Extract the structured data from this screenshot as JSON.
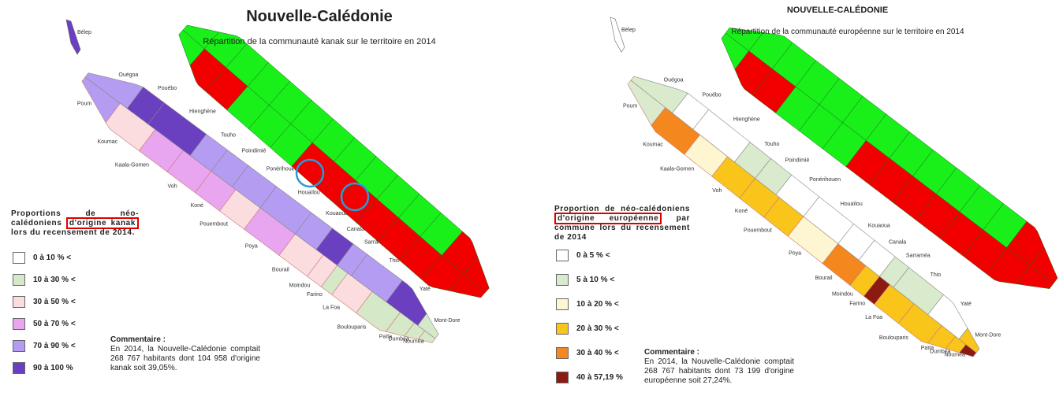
{
  "panels": [
    {
      "title": "Nouvelle-Calédonie",
      "subtitle": "Répartition de la communauté kanak sur le territoire en 2014",
      "legend": {
        "title_start": "Proportions de néo-calédoniens",
        "highlight": "d'origine kanak",
        "title_end": "lors du recensement de 2014.",
        "items": [
          {
            "label": "0 à 10 % <",
            "color": "#ffffff"
          },
          {
            "label": "10 à 30 % <",
            "color": "#d5e8c8"
          },
          {
            "label": "30 à 50 % <",
            "color": "#fbdde0"
          },
          {
            "label": "50 à 70 % <",
            "color": "#e8a6f0"
          },
          {
            "label": "70 à 90 % <",
            "color": "#b49cf2"
          },
          {
            "label": "90 à 100 %",
            "color": "#6a3fc0"
          }
        ]
      },
      "commentary": {
        "heading": "Commentaire :",
        "text": "En 2014, la Nouvelle-Calédonie comptait 268 767 habitants dont 104 958 d'origine kanak soit 39,05%."
      },
      "communes": [
        {
          "name": "Bélep",
          "color": "#6a3fc0"
        },
        {
          "name": "Poum",
          "color": "#b49cf2"
        },
        {
          "name": "Koumac",
          "color": "#fbdde0"
        },
        {
          "name": "Kaala-Gomen",
          "color": "#e8a6f0"
        },
        {
          "name": "Voh",
          "color": "#e8a6f0"
        },
        {
          "name": "Koné",
          "color": "#e8a6f0"
        },
        {
          "name": "Pouembout",
          "color": "#fbdde0"
        },
        {
          "name": "Poya",
          "color": "#e8a6f0"
        },
        {
          "name": "Bourail",
          "color": "#fbdde0"
        },
        {
          "name": "Moindou",
          "color": "#fbdde0"
        },
        {
          "name": "Farino",
          "color": "#d5e8c8"
        },
        {
          "name": "La Foa",
          "color": "#fbdde0"
        },
        {
          "name": "Boulouparis",
          "color": "#d5e8c8"
        },
        {
          "name": "Païta",
          "color": "#d5e8c8"
        },
        {
          "name": "Dumbéa",
          "color": "#d5e8c8"
        },
        {
          "name": "Nouméa",
          "color": "#d5e8c8"
        },
        {
          "name": "Ouégoa",
          "color": "#b49cf2"
        },
        {
          "name": "Pouébo",
          "color": "#6a3fc0"
        },
        {
          "name": "Hienghène",
          "color": "#6a3fc0"
        },
        {
          "name": "Touho",
          "color": "#b49cf2"
        },
        {
          "name": "Poindimié",
          "color": "#b49cf2"
        },
        {
          "name": "Ponérihouen",
          "color": "#b49cf2"
        },
        {
          "name": "Houaïlou",
          "color": "#b49cf2"
        },
        {
          "name": "Kouaoua",
          "color": "#b49cf2"
        },
        {
          "name": "Canala",
          "color": "#6a3fc0"
        },
        {
          "name": "Sarraméa",
          "color": "#b49cf2"
        },
        {
          "name": "Thio",
          "color": "#b49cf2"
        },
        {
          "name": "Yaté",
          "color": "#6a3fc0"
        },
        {
          "name": "Mont-Dore",
          "color": "#d5e8c8"
        }
      ]
    },
    {
      "title": "NOUVELLE-CALÉDONIE",
      "subtitle": "Répartition de la communauté européenne sur le territoire en 2014",
      "legend": {
        "title_start": "Proportion de néo-calédoniens",
        "highlight": "d'origine européenne",
        "title_end": "par commune lors du recensement de 2014",
        "items": [
          {
            "label": "0 à 5 % <",
            "color": "#ffffff"
          },
          {
            "label": "5 à 10 % <",
            "color": "#d9ebcc"
          },
          {
            "label": "10 à 20 % <",
            "color": "#fdf6d0"
          },
          {
            "label": "20 à 30 % <",
            "color": "#f9c51b"
          },
          {
            "label": "30 à 40 % <",
            "color": "#f5871f"
          },
          {
            "label": "40 à 57,19 %",
            "color": "#8b1a10"
          }
        ]
      },
      "commentary": {
        "heading": "Commentaire :",
        "text": "En 2014, la Nouvelle-Calédonie comptait 268 767 habitants dont 73 199 d'origine européenne soit 27,24%."
      },
      "communes": [
        {
          "name": "Bélep",
          "color": "#ffffff"
        },
        {
          "name": "Poum",
          "color": "#d9ebcc"
        },
        {
          "name": "Koumac",
          "color": "#f5871f"
        },
        {
          "name": "Kaala-Gomen",
          "color": "#fdf6d0"
        },
        {
          "name": "Voh",
          "color": "#f9c51b"
        },
        {
          "name": "Koné",
          "color": "#f9c51b"
        },
        {
          "name": "Pouembout",
          "color": "#f9c51b"
        },
        {
          "name": "Poya",
          "color": "#fdf6d0"
        },
        {
          "name": "Bourail",
          "color": "#f5871f"
        },
        {
          "name": "Moindou",
          "color": "#f9c51b"
        },
        {
          "name": "Farino",
          "color": "#8b1a10"
        },
        {
          "name": "La Foa",
          "color": "#f9c51b"
        },
        {
          "name": "Boulouparis",
          "color": "#f9c51b"
        },
        {
          "name": "Païta",
          "color": "#f9c51b"
        },
        {
          "name": "Dumbéa",
          "color": "#f9c51b"
        },
        {
          "name": "Nouméa",
          "color": "#8b1a10"
        },
        {
          "name": "Ouégoa",
          "color": "#d9ebcc"
        },
        {
          "name": "Pouébo",
          "color": "#ffffff"
        },
        {
          "name": "Hienghène",
          "color": "#ffffff"
        },
        {
          "name": "Touho",
          "color": "#d9ebcc"
        },
        {
          "name": "Poindimié",
          "color": "#d9ebcc"
        },
        {
          "name": "Ponérihouen",
          "color": "#ffffff"
        },
        {
          "name": "Houaïlou",
          "color": "#ffffff"
        },
        {
          "name": "Kouaoua",
          "color": "#ffffff"
        },
        {
          "name": "Canala",
          "color": "#ffffff"
        },
        {
          "name": "Sarraméa",
          "color": "#d9ebcc"
        },
        {
          "name": "Thio",
          "color": "#d9ebcc"
        },
        {
          "name": "Yaté",
          "color": "#ffffff"
        },
        {
          "name": "Mont-Dore",
          "color": "#f9c51b"
        }
      ]
    }
  ]
}
